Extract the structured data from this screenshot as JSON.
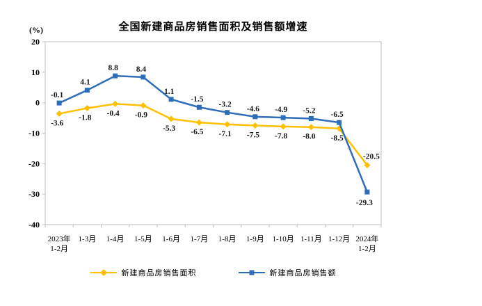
{
  "page_background": "#ffffff",
  "chart_data": {
    "type": "line",
    "title": "全国新建商品房销售面积及销售额增速",
    "unit_label": "(%)",
    "categories": [
      "2023年\n1-2月",
      "1-3月",
      "1-4月",
      "1-5月",
      "1-6月",
      "1-7月",
      "1-8月",
      "1-9月",
      "1-10月",
      "1-11月",
      "1-12月",
      "2024年\n1-2月"
    ],
    "series": [
      {
        "name": "新建商品房销售面积",
        "color": "#FFC000",
        "marker": "diamond",
        "label_position": "below",
        "values": [
          -3.6,
          -1.8,
          -0.4,
          -0.9,
          -5.3,
          -6.5,
          -7.1,
          -7.5,
          -7.8,
          -8.0,
          -8.5,
          -20.5
        ]
      },
      {
        "name": "新建商品房销售额",
        "color": "#2E6DB8",
        "marker": "square",
        "label_position": "above",
        "values": [
          -0.1,
          4.1,
          8.8,
          8.4,
          1.1,
          -1.5,
          -3.2,
          -4.6,
          -4.9,
          -5.2,
          -6.5,
          -29.3
        ]
      }
    ],
    "ylim": [
      -40,
      20
    ],
    "ytick_step": 10,
    "yticks": [
      20,
      10,
      0,
      -10,
      -20,
      -30,
      -40
    ],
    "grid": false,
    "legend_position": "bottom",
    "frame_color": "#BFBFBF",
    "label_color": "#1a1a1a",
    "axis_text_color": "#000000"
  }
}
